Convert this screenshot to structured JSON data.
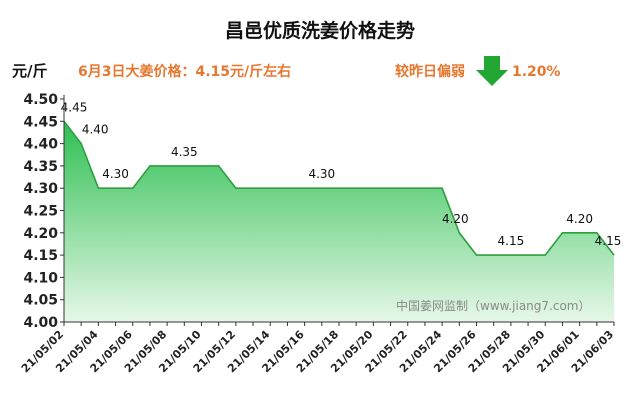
{
  "chart_data": {
    "type": "area",
    "title": "昌邑优质洗姜价格走势",
    "ylabel": "元/斤",
    "xlabel": "",
    "ylim": [
      4.0,
      4.5
    ],
    "yticks": [
      "4.00",
      "4.05",
      "4.10",
      "4.15",
      "4.20",
      "4.25",
      "4.30",
      "4.35",
      "4.40",
      "4.45",
      "4.50"
    ],
    "x_tick_labels": [
      "21/05/02",
      "21/05/04",
      "21/05/06",
      "21/05/08",
      "21/05/10",
      "21/05/12",
      "21/05/14",
      "21/05/16",
      "21/05/18",
      "21/05/20",
      "21/05/22",
      "21/05/24",
      "21/05/26",
      "21/05/28",
      "21/05/30",
      "21/06/01",
      "21/06/03"
    ],
    "x": [
      "21/05/02",
      "21/05/03",
      "21/05/04",
      "21/05/05",
      "21/05/06",
      "21/05/07",
      "21/05/08",
      "21/05/09",
      "21/05/10",
      "21/05/11",
      "21/05/12",
      "21/05/13",
      "21/05/14",
      "21/05/15",
      "21/05/16",
      "21/05/17",
      "21/05/18",
      "21/05/19",
      "21/05/20",
      "21/05/21",
      "21/05/22",
      "21/05/23",
      "21/05/24",
      "21/05/25",
      "21/05/26",
      "21/05/27",
      "21/05/28",
      "21/05/29",
      "21/05/30",
      "21/05/31",
      "21/06/01",
      "21/06/02",
      "21/06/03"
    ],
    "values": [
      4.45,
      4.4,
      4.3,
      4.3,
      4.3,
      4.35,
      4.35,
      4.35,
      4.35,
      4.35,
      4.3,
      4.3,
      4.3,
      4.3,
      4.3,
      4.3,
      4.3,
      4.3,
      4.3,
      4.3,
      4.3,
      4.3,
      4.3,
      4.2,
      4.15,
      4.15,
      4.15,
      4.15,
      4.15,
      4.2,
      4.2,
      4.2,
      4.15
    ],
    "data_labels": [
      {
        "index": 0,
        "text": "4.45"
      },
      {
        "index": 1,
        "text": "4.40"
      },
      {
        "index": 3,
        "text": "4.30"
      },
      {
        "index": 7,
        "text": "4.35"
      },
      {
        "index": 15,
        "text": "4.30"
      },
      {
        "index": 23,
        "text": "4.20"
      },
      {
        "index": 26,
        "text": "4.15"
      },
      {
        "index": 30,
        "text": "4.20"
      },
      {
        "index": 32,
        "text": "4.15"
      }
    ],
    "grid": false,
    "colors": {
      "line": "#2e9e3e",
      "fill_top": "#2fbf52",
      "fill_bottom": "#e6f8e8",
      "arrow": "#22a832"
    }
  },
  "headline": {
    "price_text": "6月3日大姜价格：4.15元/斤左右",
    "trend_text": "较昨日偏弱",
    "trend_icon": "down-arrow-icon",
    "change_text": "1.20%"
  },
  "watermark": "中国姜网监制（www.jiang7.com）"
}
